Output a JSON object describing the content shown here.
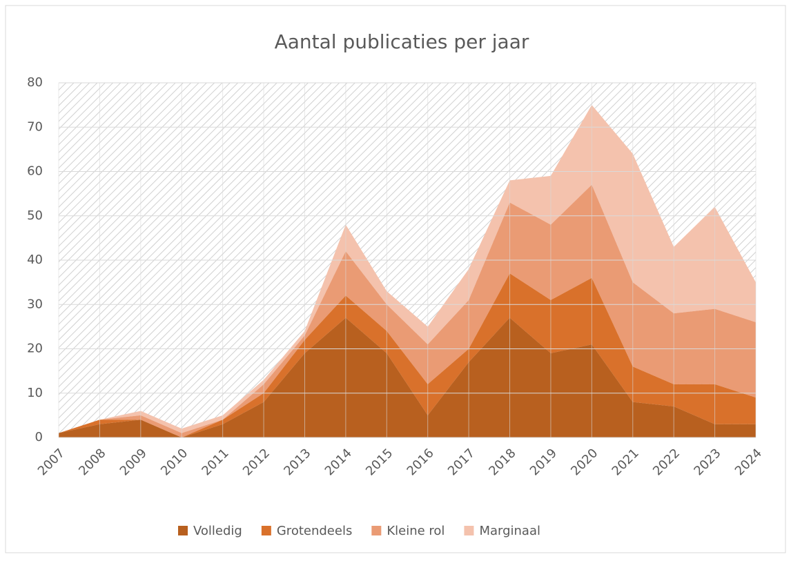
{
  "chart_data": {
    "type": "area",
    "stacked": true,
    "title": "Aantal publicaties per jaar",
    "categories": [
      "2007",
      "2008",
      "2009",
      "2010",
      "2011",
      "2012",
      "2013",
      "2014",
      "2015",
      "2016",
      "2017",
      "2018",
      "2019",
      "2020",
      "2021",
      "2022",
      "2023",
      "2024"
    ],
    "series": [
      {
        "name": "Volledig",
        "color": "#b8601f",
        "values": [
          1,
          3,
          4,
          0,
          3,
          8,
          19,
          27,
          19,
          5,
          17,
          27,
          19,
          21,
          8,
          7,
          3,
          3
        ]
      },
      {
        "name": "Grotendeels",
        "color": "#d9712b",
        "values": [
          0,
          1,
          0,
          0,
          1,
          2,
          3,
          5,
          5,
          7,
          3,
          10,
          12,
          15,
          8,
          5,
          9,
          6
        ]
      },
      {
        "name": "Kleine rol",
        "color": "#ea9b74",
        "values": [
          0,
          0,
          1,
          1,
          0,
          2,
          1,
          10,
          6,
          9,
          11,
          16,
          17,
          21,
          19,
          16,
          17,
          17
        ]
      },
      {
        "name": "Marginaal",
        "color": "#f4c2ad",
        "values": [
          0,
          0,
          1,
          1,
          1,
          1,
          1,
          6,
          3,
          4,
          7,
          5,
          11,
          18,
          29,
          15,
          23,
          9
        ]
      }
    ],
    "ylim": [
      0,
      80
    ],
    "yticks": [
      0,
      10,
      20,
      30,
      40,
      50,
      60,
      70,
      80
    ],
    "grid": true,
    "legend": "bottom"
  }
}
